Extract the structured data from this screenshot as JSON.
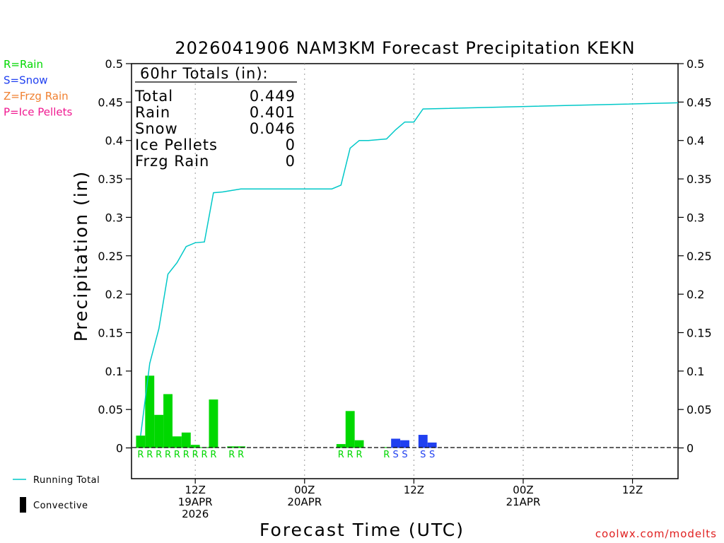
{
  "chart_data": {
    "type": "bar+line",
    "title": "2026041906 NAM3KM Forecast Precipitation KEKN",
    "ylabel": "Precipitation (in)",
    "xlabel": "Forecast Time (UTC)",
    "ylim": [
      -0.04,
      0.5
    ],
    "yticks": [
      0,
      0.05,
      0.1,
      0.15,
      0.2,
      0.25,
      0.3,
      0.35,
      0.4,
      0.45,
      0.5
    ],
    "ytick_labels": [
      "0",
      "0.05",
      "0.1",
      "0.15",
      "0.2",
      "0.25",
      "0.3",
      "0.35",
      "0.4",
      "0.45",
      "0.5"
    ],
    "xlim_hours": [
      -1,
      59
    ],
    "xticks": [
      {
        "hour": 6,
        "lines": [
          "12Z",
          "19APR",
          "2026"
        ]
      },
      {
        "hour": 18,
        "lines": [
          "00Z",
          "20APR"
        ]
      },
      {
        "hour": 30,
        "lines": [
          "12Z"
        ]
      },
      {
        "hour": 42,
        "lines": [
          "00Z",
          "21APR"
        ]
      },
      {
        "hour": 54,
        "lines": [
          "12Z"
        ]
      }
    ],
    "legend_types": [
      {
        "label": "R=Rain",
        "color": "#00d800"
      },
      {
        "label": "S=Snow",
        "color": "#2040f0"
      },
      {
        "label": "Z=Frzg Rain",
        "color": "#f08030"
      },
      {
        "label": "P=Ice Pellets",
        "color": "#f01890"
      }
    ],
    "legend_series": [
      {
        "label": "Running Total",
        "kind": "line",
        "color": "#00c8c8"
      },
      {
        "label": "Convective",
        "kind": "bar",
        "color": "#000000"
      }
    ],
    "totals": {
      "header": "60hr Totals (in):",
      "rows": [
        {
          "label": "Total",
          "value": "0.449"
        },
        {
          "label": "Rain",
          "value": "0.401"
        },
        {
          "label": "Snow",
          "value": "0.046"
        },
        {
          "label": "Ice Pellets",
          "value": "0"
        },
        {
          "label": "Frzg Rain",
          "value": "0"
        }
      ]
    },
    "bars": [
      {
        "hour": 0,
        "value": 0.016,
        "type": "R"
      },
      {
        "hour": 1,
        "value": 0.094,
        "type": "R"
      },
      {
        "hour": 2,
        "value": 0.043,
        "type": "R"
      },
      {
        "hour": 3,
        "value": 0.07,
        "type": "R"
      },
      {
        "hour": 4,
        "value": 0.015,
        "type": "R"
      },
      {
        "hour": 5,
        "value": 0.02,
        "type": "R"
      },
      {
        "hour": 6,
        "value": 0.004,
        "type": "R"
      },
      {
        "hour": 7,
        "value": 0.001,
        "type": "R"
      },
      {
        "hour": 8,
        "value": 0.063,
        "type": "R"
      },
      {
        "hour": 10,
        "value": 0.002,
        "type": "R"
      },
      {
        "hour": 11,
        "value": 0.002,
        "type": "R"
      },
      {
        "hour": 22,
        "value": 0.005,
        "type": "R"
      },
      {
        "hour": 23,
        "value": 0.048,
        "type": "R"
      },
      {
        "hour": 24,
        "value": 0.01,
        "type": "R"
      },
      {
        "hour": 27,
        "value": 0.001,
        "type": "R"
      },
      {
        "hour": 28,
        "value": 0.012,
        "type": "S"
      },
      {
        "hour": 29,
        "value": 0.01,
        "type": "S"
      },
      {
        "hour": 31,
        "value": 0.017,
        "type": "S"
      },
      {
        "hour": 32,
        "value": 0.007,
        "type": "S"
      }
    ],
    "running_total": {
      "hours": [
        0,
        1,
        2,
        3,
        4,
        5,
        6,
        7,
        8,
        9,
        10,
        11,
        12,
        21,
        22,
        23,
        24,
        25,
        26,
        27,
        28,
        29,
        30,
        31,
        59
      ],
      "values": [
        0.016,
        0.11,
        0.155,
        0.226,
        0.241,
        0.262,
        0.267,
        0.268,
        0.332,
        0.333,
        0.335,
        0.337,
        0.337,
        0.337,
        0.342,
        0.39,
        0.4,
        0.4,
        0.401,
        0.402,
        0.414,
        0.424,
        0.424,
        0.441,
        0.449
      ]
    }
  },
  "credit": "coolwx.com/modelts"
}
